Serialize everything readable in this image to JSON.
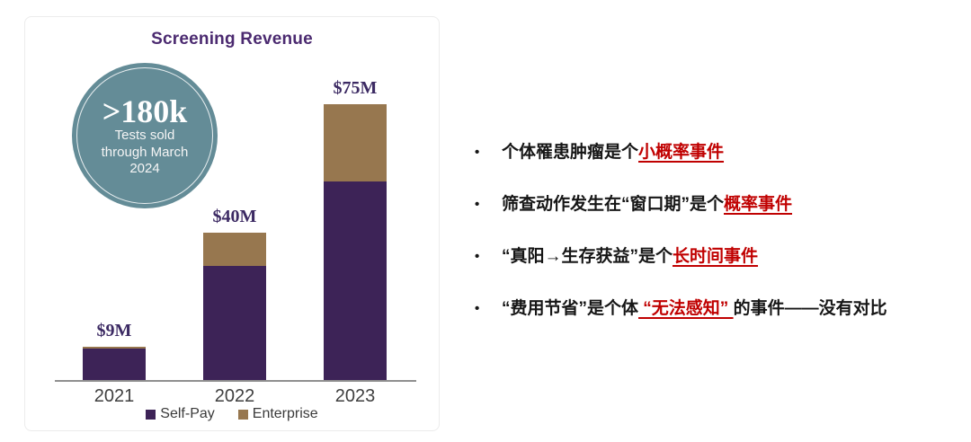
{
  "badge": {
    "headline": ">180k",
    "lines": [
      "Tests sold",
      "through March",
      "2024"
    ],
    "bg_color": "#648c97"
  },
  "chart_data": {
    "type": "bar",
    "stacked": true,
    "title": "Screening Revenue",
    "title_color": "#4b2a70",
    "categories": [
      "2021",
      "2022",
      "2023"
    ],
    "series": [
      {
        "name": "Self-Pay",
        "color": "#3d2357",
        "values": [
          8.5,
          31,
          54
        ]
      },
      {
        "name": "Enterprise",
        "color": "#97774f",
        "values": [
          0.5,
          9,
          21
        ]
      }
    ],
    "totals": [
      9,
      40,
      75
    ],
    "total_labels": [
      "$9M",
      "$40M",
      "$75M"
    ],
    "value_label_color": "#3c2a63",
    "xlabel": "",
    "ylabel": "",
    "ylim": [
      0,
      80
    ],
    "grid": false,
    "legend_position": "bottom"
  },
  "bullets": {
    "red_color": "#c00000",
    "marker": "•",
    "items": [
      {
        "pre": "个体罹患肿瘤是个",
        "red": "小概率事件",
        "post": ""
      },
      {
        "pre": "筛查动作发生在“窗口期”是个",
        "red": "概率事件",
        "post": ""
      },
      {
        "pre": "“真阳→生存获益”是个",
        "red": "长时间事件",
        "post": ""
      },
      {
        "pre": "“费用节省”是个体",
        "red": " “无法感知” ",
        "post": "的事件——没有对比"
      }
    ]
  }
}
